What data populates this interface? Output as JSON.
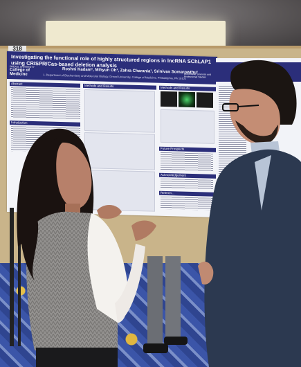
{
  "booth_number": "318",
  "poster": {
    "title": "Investigating the functional role of highly structured regions in lncRNA SChLAP1 using CRISPR/Cas-based deletion analysis",
    "authors": "Roshni Kadam¹, Mihyun Oh¹, Zahra Charania¹, Srinivas Somarowthu¹",
    "affiliation": "1- Department of Biochemistry and Molecular Biology, Drexel University, College of Medicine, Philadelphia, PA 19102",
    "university_line1": "DREXEL UNIVERSITY",
    "university_line2": "College of Medicine",
    "right_logo": "Biomedical Sciences and Professional Studies",
    "sections": {
      "abstract": "Abstract",
      "methods": "Methods and Results",
      "methods2": "Methods and Results",
      "introduction": "Introduction",
      "future": "Future Prospects",
      "ack": "Acknowledgement",
      "refs": "Referen..."
    }
  },
  "colors": {
    "poster_blue": "#2b2e7a",
    "board": "#c9b48a",
    "carpet": "#3b55a8"
  }
}
